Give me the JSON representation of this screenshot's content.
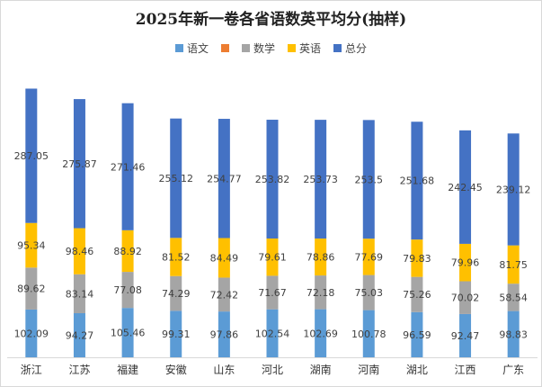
{
  "title": "2025年新一卷各省语数英平均分(抽样)",
  "colors": {
    "语文": "#5b9bd5",
    "数学": "#a5a5a5",
    "英语": "#ffc000",
    "总分": "#4472c4",
    "legend_orange": "#ed7d31"
  },
  "legend": [
    {
      "name": "语文",
      "color": "#5b9bd5"
    },
    {
      "name": "",
      "color": "#ed7d31"
    },
    {
      "name": "数学",
      "color": "#a5a5a5"
    },
    {
      "name": "英语",
      "color": "#ffc000"
    },
    {
      "name": "总分",
      "color": "#4472c4"
    }
  ],
  "chart_data": {
    "type": "bar",
    "stacked": true,
    "title": "2025年新一卷各省语数英平均分(抽样)",
    "categories": [
      "浙江",
      "江苏",
      "福建",
      "安徽",
      "山东",
      "河北",
      "湖南",
      "河南",
      "湖北",
      "江西",
      "广东"
    ],
    "series": [
      {
        "name": "语文",
        "values": [
          102.09,
          94.27,
          105.46,
          99.31,
          97.86,
          102.54,
          102.69,
          100.78,
          96.59,
          92.47,
          98.83
        ]
      },
      {
        "name": "数学",
        "values": [
          89.62,
          83.14,
          77.08,
          74.29,
          72.42,
          71.67,
          72.18,
          75.03,
          75.26,
          70.02,
          58.54
        ]
      },
      {
        "name": "英语",
        "values": [
          95.34,
          98.46,
          88.92,
          81.52,
          84.49,
          79.61,
          78.86,
          77.69,
          79.83,
          79.96,
          81.75
        ]
      },
      {
        "name": "总分",
        "values": [
          287.05,
          275.87,
          271.46,
          255.12,
          254.77,
          253.82,
          253.73,
          253.5,
          251.68,
          242.45,
          239.12
        ]
      }
    ],
    "value_labels": [
      [
        "102.09",
        "94.27",
        "105.46",
        "99.31",
        "97.86",
        "102.54",
        "102.69",
        "100.78",
        "96.59",
        "92.47",
        "98.83"
      ],
      [
        "89.62",
        "83.14",
        "77.08",
        "74.29",
        "72.42",
        "71.67",
        "72.18",
        "75.03",
        "75.26",
        "70.02",
        "58.54"
      ],
      [
        "95.34",
        "98.46",
        "88.92",
        "81.52",
        "84.49",
        "79.61",
        "78.86",
        "77.69",
        "79.83",
        "79.96",
        "81.75"
      ],
      [
        "287.05",
        "275.87",
        "271.46",
        "255.12",
        "254.77",
        "253.82",
        "253.73",
        "253.5",
        "251.68",
        "242.45",
        "239.12"
      ]
    ],
    "grid": false,
    "legend_position": "top"
  }
}
